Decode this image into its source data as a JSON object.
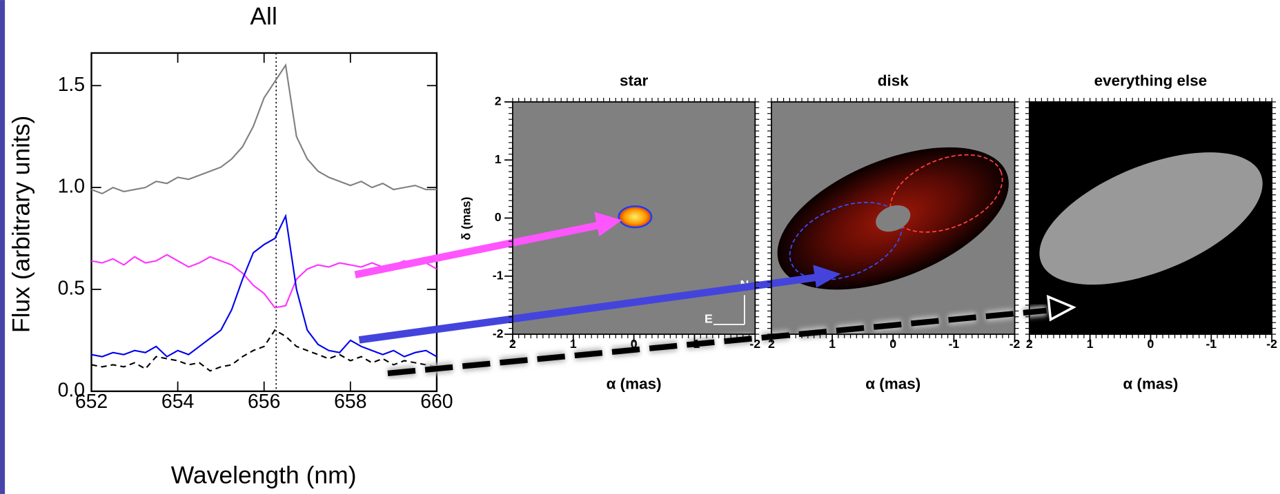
{
  "chart_data": [
    {
      "type": "line",
      "title": "All",
      "xlabel": "Wavelength (nm)",
      "ylabel": "Flux (arbitrary units)",
      "xlim": [
        652,
        660
      ],
      "ylim": [
        0,
        1.66
      ],
      "xticks": [
        652,
        654,
        656,
        658,
        660
      ],
      "yticks": [
        {
          "value": 0,
          "label": "0.0"
        },
        0.5,
        {
          "value": 1,
          "label": "1.0"
        },
        1.5
      ],
      "vline": 656.28,
      "x": [
        652,
        652.25,
        652.5,
        652.75,
        653,
        653.25,
        653.5,
        653.75,
        654,
        654.25,
        654.5,
        654.75,
        655,
        655.25,
        655.5,
        655.75,
        656,
        656.25,
        656.5,
        656.75,
        657,
        657.25,
        657.5,
        657.75,
        658,
        658.25,
        658.5,
        658.75,
        659,
        659.25,
        659.5,
        659.75,
        660
      ],
      "series": [
        {
          "color": "#808080",
          "dash": false,
          "values": [
            0.99,
            0.97,
            1.0,
            0.98,
            0.99,
            1.0,
            1.03,
            1.02,
            1.05,
            1.04,
            1.06,
            1.08,
            1.1,
            1.14,
            1.2,
            1.3,
            1.44,
            1.52,
            1.6,
            1.25,
            1.14,
            1.08,
            1.05,
            1.03,
            1.01,
            1.03,
            1.0,
            1.02,
            0.99,
            1.0,
            1.01,
            0.99,
            0.99
          ]
        },
        {
          "color": "#ff33ff",
          "dash": false,
          "values": [
            0.64,
            0.63,
            0.65,
            0.62,
            0.66,
            0.63,
            0.64,
            0.67,
            0.64,
            0.61,
            0.63,
            0.66,
            0.64,
            0.62,
            0.58,
            0.52,
            0.48,
            0.41,
            0.42,
            0.55,
            0.6,
            0.62,
            0.61,
            0.63,
            0.62,
            0.61,
            0.63,
            0.61,
            0.62,
            0.64,
            0.62,
            0.63,
            0.6
          ]
        },
        {
          "color": "#0000ee",
          "dash": false,
          "values": [
            0.18,
            0.17,
            0.19,
            0.18,
            0.2,
            0.19,
            0.22,
            0.17,
            0.2,
            0.18,
            0.22,
            0.26,
            0.3,
            0.4,
            0.55,
            0.68,
            0.72,
            0.75,
            0.86,
            0.5,
            0.3,
            0.23,
            0.2,
            0.19,
            0.25,
            0.22,
            0.2,
            0.18,
            0.2,
            0.17,
            0.19,
            0.2,
            0.17
          ]
        },
        {
          "color": "#000000",
          "dash": true,
          "values": [
            0.13,
            0.12,
            0.13,
            0.12,
            0.14,
            0.11,
            0.17,
            0.16,
            0.15,
            0.13,
            0.14,
            0.1,
            0.12,
            0.13,
            0.17,
            0.2,
            0.22,
            0.3,
            0.27,
            0.22,
            0.2,
            0.18,
            0.16,
            0.18,
            0.15,
            0.17,
            0.14,
            0.16,
            0.13,
            0.15,
            0.14,
            0.13,
            0.12
          ]
        }
      ]
    },
    {
      "type": "image",
      "title": "star",
      "xlabel": "α (mas)",
      "ylabel": "δ (mas)",
      "xlim": [
        2,
        -2
      ],
      "ylim": [
        -2,
        2
      ],
      "xticks": [
        2,
        1,
        0,
        -1,
        -2
      ],
      "yticks": [
        -2,
        -1,
        0,
        1,
        2
      ],
      "compass": {
        "north": "N",
        "east": "E"
      }
    },
    {
      "type": "image",
      "title": "disk",
      "xlabel": "α (mas)",
      "xlim": [
        2,
        -2
      ],
      "ylim": [
        -2,
        2
      ],
      "xticks": [
        2,
        1,
        0,
        -1,
        -2
      ]
    },
    {
      "type": "image",
      "title": "everything else",
      "xlabel": "α (mas)",
      "xlim": [
        2,
        -2
      ],
      "ylim": [
        -2,
        2
      ],
      "xticks": [
        2,
        1,
        0,
        -1,
        -2
      ]
    }
  ]
}
